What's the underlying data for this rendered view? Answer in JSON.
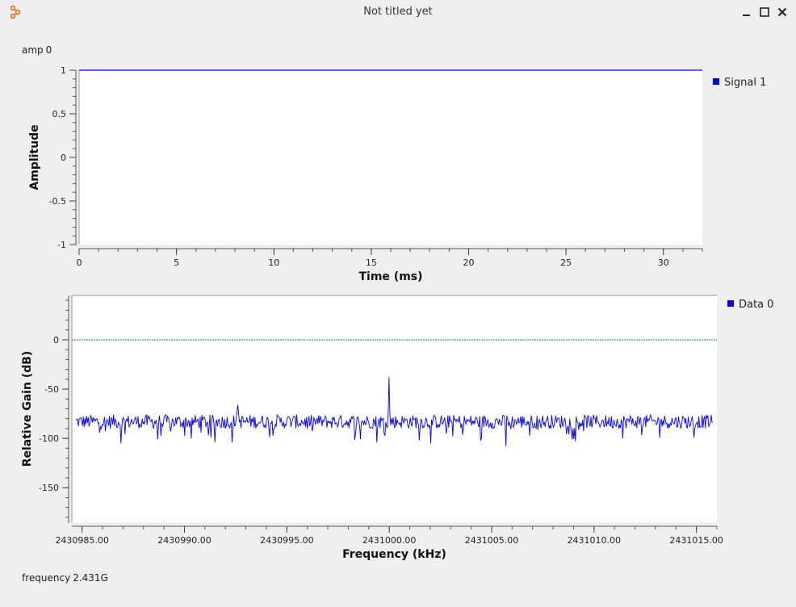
{
  "window": {
    "title": "Not titled yet",
    "icon": "gnuradio-icon",
    "controls": [
      "minimize-icon",
      "maximize-icon",
      "close-icon"
    ]
  },
  "params": {
    "amp": {
      "label": "amp",
      "value": "0"
    },
    "frequency": {
      "label": "frequency",
      "value": "2.431G"
    }
  },
  "colors": {
    "trace": "#0000ff",
    "background": "#efefef",
    "plot_bg": "#ffffff",
    "ref_line": "#1a7a7a"
  },
  "chart_data": [
    {
      "type": "line",
      "xlabel": "Time (ms)",
      "ylabel": "Amplitude",
      "xlim": [
        0,
        32
      ],
      "ylim": [
        -1,
        1
      ],
      "xticks": [
        0,
        5,
        10,
        15,
        20,
        25,
        30
      ],
      "xtick_labels": [
        "0",
        "5",
        "10",
        "15",
        "20",
        "25",
        "30"
      ],
      "yticks": [
        1,
        0.5,
        0,
        -0.5,
        -1
      ],
      "ytick_labels": [
        "1",
        "0.5",
        "0",
        "-0.5",
        "-1"
      ],
      "legend": {
        "placement": "right",
        "entries": [
          "Signal 1"
        ]
      },
      "series": [
        {
          "name": "Signal 1",
          "x": [
            0,
            32
          ],
          "y": [
            1,
            1
          ]
        }
      ]
    },
    {
      "type": "line",
      "xlabel": "Frequency (kHz)",
      "ylabel": "Relative Gain (dB)",
      "xlim": [
        2430984.5,
        2431016
      ],
      "ylim": [
        -185,
        45
      ],
      "xticks": [
        2430985,
        2430990,
        2430995,
        2431000,
        2431005,
        2431010,
        2431015
      ],
      "xtick_labels": [
        "2430985.00",
        "2430990.00",
        "2430995.00",
        "2431000.00",
        "2431005.00",
        "2431010.00",
        "2431015.00"
      ],
      "yticks": [
        0,
        -50,
        -100,
        -150
      ],
      "ytick_labels": [
        "0",
        "-50",
        "-100",
        "-150"
      ],
      "reference_line": 0,
      "noise_floor_db": -83,
      "legend": {
        "placement": "right",
        "entries": [
          "Data 0"
        ]
      },
      "series": [
        {
          "name": "Data 0",
          "x_start": 2430984.7,
          "x_end": 2431015.8,
          "peaks": [
            {
              "x": 2431000.0,
              "y": -38
            },
            {
              "x": 2430992.6,
              "y": -66
            }
          ],
          "dips": [
            {
              "x": 2430986.9,
              "y": -105
            },
            {
              "x": 2430999.4,
              "y": -104
            },
            {
              "x": 2431005.7,
              "y": -108
            },
            {
              "x": 2430988.7,
              "y": -101
            },
            {
              "x": 2431011.4,
              "y": -100
            },
            {
              "x": 2430998.6,
              "y": -101
            }
          ]
        }
      ]
    }
  ]
}
